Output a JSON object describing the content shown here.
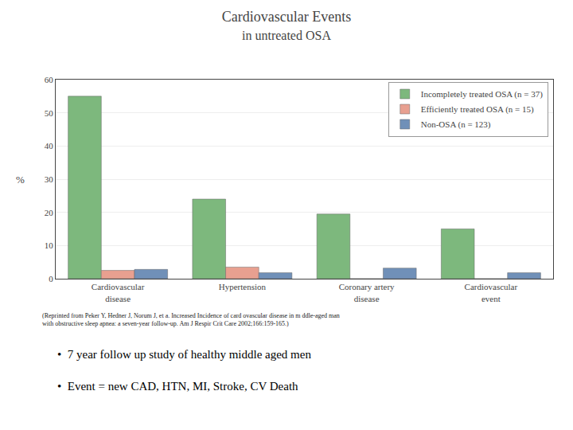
{
  "chart_data": {
    "type": "bar",
    "title": "Cardiovascular Events",
    "subtitle": "in untreated OSA",
    "y_label": "%",
    "categories": [
      "Cardiovascular\ndisease",
      "Hypertension",
      "Coronary artery\ndisease",
      "Cardiovascular\nevent"
    ],
    "series": [
      {
        "name": "Incompletely treated OSA (n = 37)",
        "color": "#7db87d",
        "values": [
          55,
          24,
          19.5,
          15
        ]
      },
      {
        "name": "Efficiently treated OSA (n = 15)",
        "color": "#e8a090",
        "values": [
          2.5,
          3.5,
          0,
          0
        ]
      },
      {
        "name": "Non-OSA (n = 123)",
        "color": "#7090b8",
        "values": [
          2.8,
          1.8,
          3.2,
          1.8
        ]
      }
    ],
    "ylim": [
      0,
      60
    ],
    "yticks": [
      0,
      10,
      20,
      30,
      40,
      50,
      60
    ],
    "grid": true,
    "legend": "upper right",
    "annotations": [
      "(Reprinted from Peker Y, Hedner J, Norum J, et a. Increased Incidence of card ovascular disease in m ddle-aged man\nwith obstructive sleep apnea: a seven-year follow-up. Am J Respir Crit Care 2002;166:159-165.)",
      "•  7 year follow up study of healthy middle aged men",
      "•  Event = new CAD, HTN, MI, Stroke, CV Death"
    ]
  }
}
